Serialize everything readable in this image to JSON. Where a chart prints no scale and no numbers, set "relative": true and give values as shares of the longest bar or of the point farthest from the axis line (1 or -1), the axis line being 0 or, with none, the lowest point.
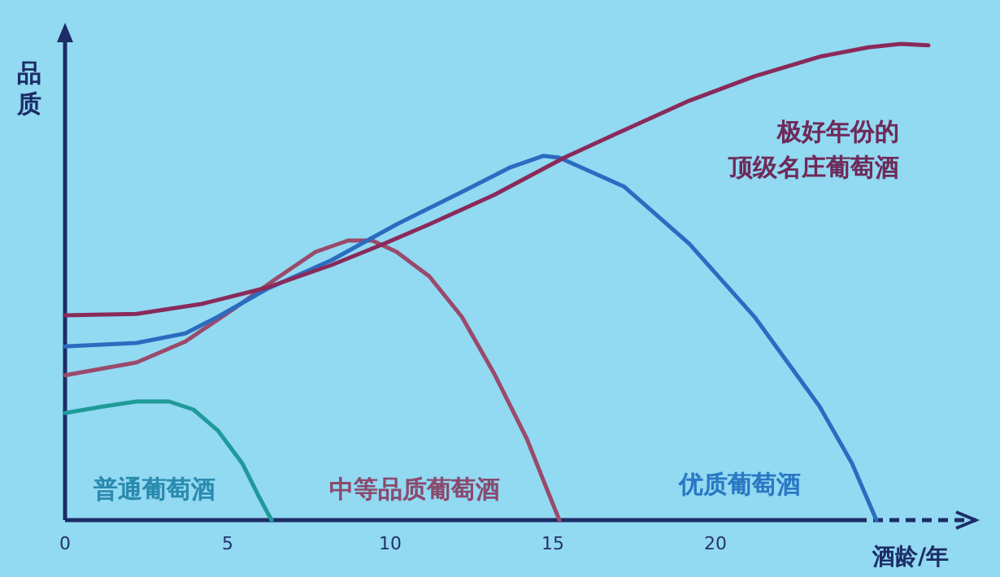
{
  "chart_data": {
    "type": "line",
    "relative": true,
    "xlabel": "酒龄/年",
    "ylabel": "品质",
    "xlim": [
      0,
      28
    ],
    "xticks": [
      0,
      5,
      10,
      15,
      20
    ],
    "line_style": "solid",
    "series": [
      {
        "name": "普通葡萄酒",
        "color": "#1f9a9a",
        "x": [
          0,
          1.2,
          2.2,
          3.2,
          3.95,
          4.7,
          5.45,
          5.95,
          6.35
        ],
        "values": [
          0.225,
          0.239,
          0.249,
          0.249,
          0.232,
          0.188,
          0.119,
          0.051,
          0
        ]
      },
      {
        "name": "中等品质葡萄酒",
        "color": "#9a4a6a",
        "x": [
          0,
          2.2,
          3.7,
          5.2,
          6.45,
          7.7,
          8.7,
          9.45,
          10.2,
          11.2,
          12.2,
          13.2,
          14.2,
          14.7,
          15.2
        ],
        "values": [
          0.304,
          0.331,
          0.375,
          0.444,
          0.505,
          0.563,
          0.587,
          0.587,
          0.563,
          0.512,
          0.427,
          0.307,
          0.171,
          0.085,
          0
        ]
      },
      {
        "name": "优质葡萄酒",
        "color": "#2a6cc0",
        "x": [
          0,
          2.2,
          3.7,
          4.7,
          6.2,
          8.2,
          10.2,
          12.2,
          13.7,
          14.7,
          15.2,
          17.2,
          19.2,
          21.2,
          23.2,
          24.2,
          24.95
        ],
        "values": [
          0.365,
          0.372,
          0.392,
          0.427,
          0.485,
          0.546,
          0.621,
          0.689,
          0.741,
          0.765,
          0.761,
          0.7,
          0.58,
          0.427,
          0.239,
          0.119,
          0
        ]
      },
      {
        "name": "极好年份的顶级名庄葡萄酒",
        "color": "#8a2a5a",
        "x": [
          0,
          2.2,
          4.2,
          6.2,
          8.2,
          9.7,
          11.2,
          13.2,
          15.35,
          17.2,
          19.2,
          21.2,
          23.2,
          24.7,
          25.7,
          26.55
        ],
        "values": [
          0.43,
          0.433,
          0.454,
          0.488,
          0.536,
          0.577,
          0.621,
          0.683,
          0.761,
          0.819,
          0.881,
          0.932,
          0.973,
          0.993,
          1,
          0.997
        ]
      }
    ]
  }
}
